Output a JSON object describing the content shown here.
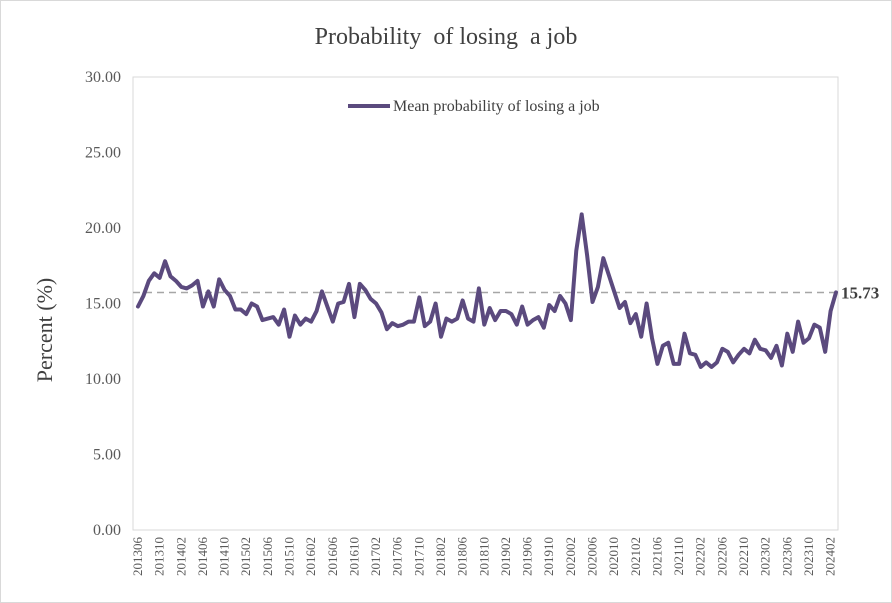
{
  "chart_data": {
    "type": "line",
    "title": "Probability  of losing  a job",
    "ylabel": "Percent (%)",
    "xlabel": "",
    "ylim": [
      0,
      30
    ],
    "y_ticks": [
      "0.00",
      "5.00",
      "10.00",
      "15.00",
      "20.00",
      "25.00",
      "30.00"
    ],
    "x_tick_labels": [
      "201306",
      "201310",
      "201402",
      "201406",
      "201410",
      "201502",
      "201506",
      "201510",
      "201602",
      "201606",
      "201610",
      "201702",
      "201706",
      "201710",
      "201802",
      "201806",
      "201810",
      "201902",
      "201906",
      "201910",
      "202002",
      "202006",
      "202010",
      "202102",
      "202106",
      "202110",
      "202202",
      "202206",
      "202210",
      "202302",
      "202306",
      "202310",
      "202402"
    ],
    "series": [
      {
        "name": "Mean probability of losing a job",
        "color": "#5b4a7e",
        "start_month": "201306",
        "values": [
          14.8,
          15.5,
          16.5,
          17.0,
          16.7,
          17.8,
          16.8,
          16.5,
          16.1,
          16.0,
          16.2,
          16.5,
          14.8,
          15.8,
          14.8,
          16.6,
          15.9,
          15.5,
          14.6,
          14.6,
          14.3,
          15.0,
          14.8,
          13.9,
          14.0,
          14.1,
          13.6,
          14.6,
          12.8,
          14.2,
          13.6,
          14.0,
          13.8,
          14.5,
          15.8,
          14.8,
          13.8,
          15.0,
          15.1,
          16.3,
          14.1,
          16.3,
          15.9,
          15.3,
          15.0,
          14.4,
          13.3,
          13.7,
          13.5,
          13.6,
          13.8,
          13.8,
          15.4,
          13.5,
          13.8,
          15.0,
          12.8,
          14.0,
          13.8,
          14.0,
          15.2,
          14.0,
          13.8,
          16.0,
          13.6,
          14.7,
          13.9,
          14.5,
          14.5,
          14.3,
          13.6,
          14.8,
          13.6,
          13.9,
          14.1,
          13.4,
          14.9,
          14.5,
          15.5,
          15.0,
          13.9,
          18.5,
          20.9,
          18.2,
          15.1,
          16.1,
          18.0,
          16.9,
          15.8,
          14.7,
          15.1,
          13.7,
          14.3,
          12.8,
          15.0,
          12.7,
          11.0,
          12.2,
          12.4,
          11.0,
          11.0,
          13.0,
          11.7,
          11.6,
          10.8,
          11.1,
          10.8,
          11.1,
          12.0,
          11.8,
          11.1,
          11.6,
          12.0,
          11.7,
          12.6,
          12.0,
          11.9,
          11.4,
          12.2,
          10.9,
          13.0,
          11.8,
          13.8,
          12.4,
          12.7,
          13.6,
          13.4,
          11.8,
          14.5,
          15.73
        ]
      }
    ],
    "reference_line": {
      "value": 15.73,
      "label": "15.73",
      "style": "dashed",
      "color": "#a6a6a6"
    },
    "legend_position": "top-center",
    "grid": false
  }
}
